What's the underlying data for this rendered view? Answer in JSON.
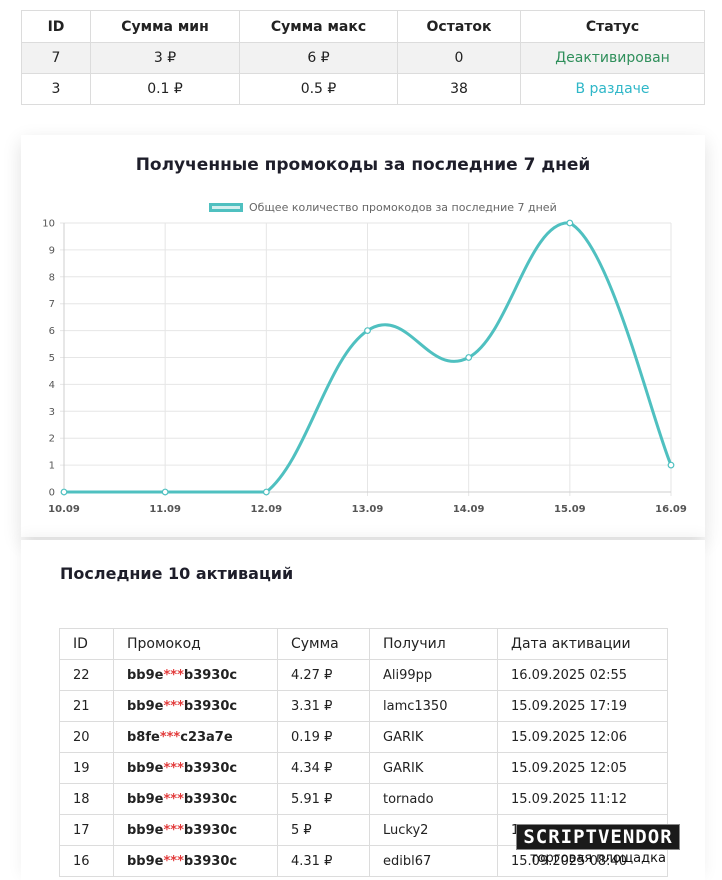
{
  "top_table": {
    "headers": [
      "ID",
      "Сумма мин",
      "Сумма макс",
      "Остаток",
      "Статус"
    ],
    "rows": [
      {
        "id": "7",
        "min": "3 ₽",
        "max": "6 ₽",
        "rest": "0",
        "status": "Деактивирован",
        "status_type": "deactivated"
      },
      {
        "id": "3",
        "min": "0.1 ₽",
        "max": "0.5 ₽",
        "rest": "38",
        "status": "В раздаче",
        "status_type": "active"
      }
    ]
  },
  "chart_section": {
    "title": "Полученные промокоды за последние 7 дней"
  },
  "chart_data": {
    "type": "line",
    "x": [
      "10.09",
      "11.09",
      "12.09",
      "13.09",
      "14.09",
      "15.09",
      "16.09"
    ],
    "series": [
      {
        "name": "Общее количество промокодов за последние 7 дней",
        "values": [
          0,
          0,
          0,
          6,
          5,
          10,
          1
        ]
      }
    ],
    "ylim": [
      0,
      10
    ],
    "yticks": [
      0,
      1,
      2,
      3,
      4,
      5,
      6,
      7,
      8,
      9,
      10
    ],
    "grid": true,
    "legend": "top",
    "color": "#4fc0c0"
  },
  "activations": {
    "title": "Последние 10 активаций",
    "headers": [
      "ID",
      "Промокод",
      "Сумма",
      "Получил",
      "Дата активации"
    ],
    "rows": [
      {
        "id": "22",
        "code_a": "bb9e",
        "mask": "***",
        "code_b": "b3930c",
        "sum": "4.27 ₽",
        "user": "Ali99pp",
        "date": "16.09.2025 02:55"
      },
      {
        "id": "21",
        "code_a": "bb9e",
        "mask": "***",
        "code_b": "b3930c",
        "sum": "3.31 ₽",
        "user": "lamc1350",
        "date": "15.09.2025 17:19"
      },
      {
        "id": "20",
        "code_a": "b8fe",
        "mask": "***",
        "code_b": "c23a7e",
        "sum": "0.19 ₽",
        "user": "GARIK",
        "date": "15.09.2025 12:06"
      },
      {
        "id": "19",
        "code_a": "bb9e",
        "mask": "***",
        "code_b": "b3930c",
        "sum": "4.34 ₽",
        "user": "GARIK",
        "date": "15.09.2025 12:05"
      },
      {
        "id": "18",
        "code_a": "bb9e",
        "mask": "***",
        "code_b": "b3930c",
        "sum": "5.91 ₽",
        "user": "tornado",
        "date": "15.09.2025 11:12"
      },
      {
        "id": "17",
        "code_a": "bb9e",
        "mask": "***",
        "code_b": "b3930c",
        "sum": "5 ₽",
        "user": "Lucky2",
        "date": "15.09.2025 10:..."
      },
      {
        "id": "16",
        "code_a": "bb9e",
        "mask": "***",
        "code_b": "b3930c",
        "sum": "4.31 ₽",
        "user": "edibl67",
        "date": "15.09.2025 08:40"
      }
    ]
  },
  "watermark": {
    "main": "SCRIPTVENDOR",
    "sub": "торговая площадка"
  }
}
